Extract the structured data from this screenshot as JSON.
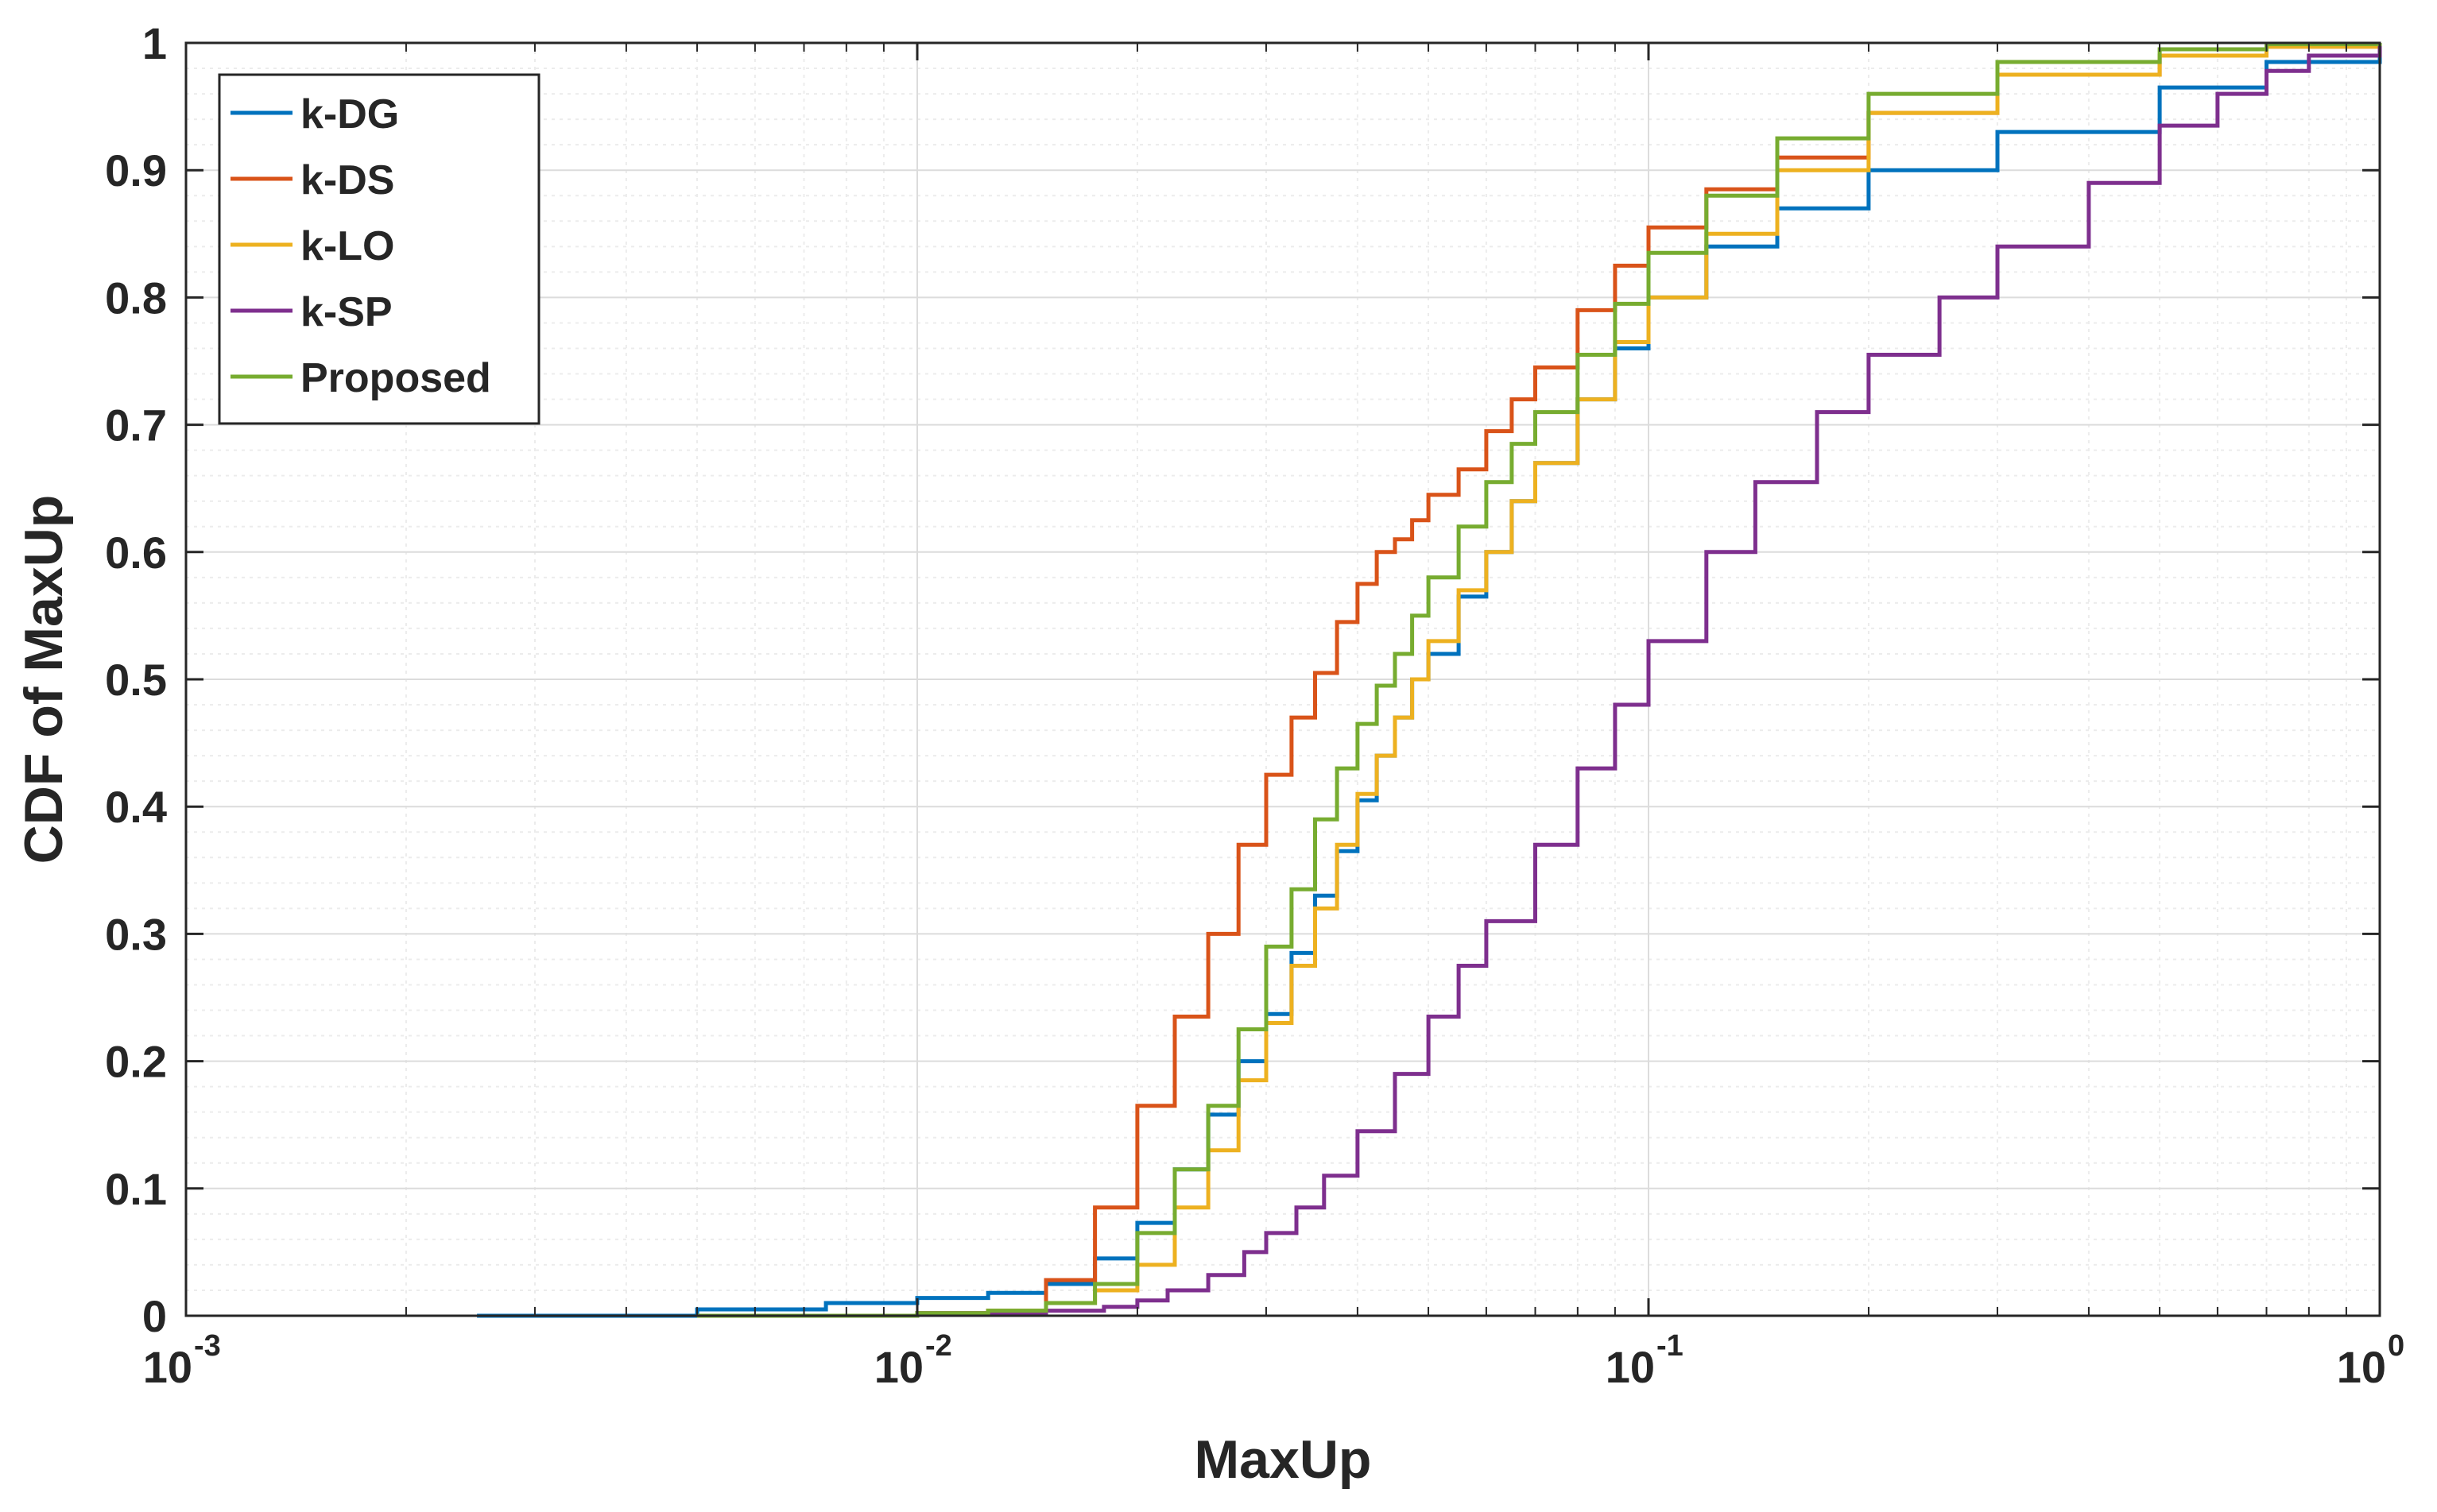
{
  "chart_data": {
    "type": "line",
    "title": "",
    "xlabel": "MaxUp",
    "ylabel": "CDF of MaxUp",
    "xscale": "log",
    "xlim": [
      0.001,
      1
    ],
    "ylim": [
      0,
      1
    ],
    "grid": true,
    "minor_grid": true,
    "legend_position": "top-left",
    "x_ticks": [
      {
        "base": "10",
        "exp": "-3",
        "value": 0.001
      },
      {
        "base": "10",
        "exp": "-2",
        "value": 0.01
      },
      {
        "base": "10",
        "exp": "-1",
        "value": 0.1
      },
      {
        "base": "10",
        "exp": "0",
        "value": 1
      }
    ],
    "y_ticks": [
      "0",
      "0.1",
      "0.2",
      "0.3",
      "0.4",
      "0.5",
      "0.6",
      "0.7",
      "0.8",
      "0.9",
      "1"
    ],
    "series": [
      {
        "name": "k-DG",
        "color": "#0072BD",
        "x": [
          0.0025,
          0.005,
          0.0075,
          0.01,
          0.0125,
          0.015,
          0.0175,
          0.02,
          0.0225,
          0.025,
          0.0275,
          0.03,
          0.0325,
          0.035,
          0.0375,
          0.04,
          0.0425,
          0.045,
          0.0475,
          0.05,
          0.055,
          0.06,
          0.065,
          0.07,
          0.08,
          0.09,
          0.1,
          0.12,
          0.15,
          0.2,
          0.3,
          0.5,
          0.7,
          1.0
        ],
        "y": [
          0.0,
          0.005,
          0.01,
          0.014,
          0.018,
          0.025,
          0.045,
          0.073,
          0.115,
          0.158,
          0.2,
          0.237,
          0.285,
          0.33,
          0.365,
          0.405,
          0.44,
          0.47,
          0.5,
          0.52,
          0.565,
          0.6,
          0.64,
          0.67,
          0.72,
          0.76,
          0.8,
          0.84,
          0.87,
          0.9,
          0.93,
          0.965,
          0.985,
          1.0
        ]
      },
      {
        "name": "k-DS",
        "color": "#D95319",
        "x": [
          0.005,
          0.01,
          0.0125,
          0.015,
          0.0175,
          0.02,
          0.0225,
          0.025,
          0.0275,
          0.03,
          0.0325,
          0.035,
          0.0375,
          0.04,
          0.0425,
          0.045,
          0.0475,
          0.05,
          0.055,
          0.06,
          0.065,
          0.07,
          0.08,
          0.09,
          0.1,
          0.12,
          0.15,
          0.2,
          0.3,
          0.5,
          0.7,
          1.0
        ],
        "y": [
          0.0,
          0.002,
          0.004,
          0.028,
          0.085,
          0.165,
          0.235,
          0.3,
          0.37,
          0.425,
          0.47,
          0.505,
          0.545,
          0.575,
          0.6,
          0.61,
          0.625,
          0.645,
          0.665,
          0.695,
          0.72,
          0.745,
          0.79,
          0.825,
          0.855,
          0.885,
          0.91,
          0.945,
          0.975,
          0.99,
          0.997,
          1.0
        ]
      },
      {
        "name": "k-LO",
        "color": "#EDB120",
        "x": [
          0.005,
          0.01,
          0.0125,
          0.015,
          0.0175,
          0.02,
          0.0225,
          0.025,
          0.0275,
          0.03,
          0.0325,
          0.035,
          0.0375,
          0.04,
          0.0425,
          0.045,
          0.0475,
          0.05,
          0.055,
          0.06,
          0.065,
          0.07,
          0.08,
          0.09,
          0.1,
          0.12,
          0.15,
          0.2,
          0.3,
          0.5,
          0.7,
          1.0
        ],
        "y": [
          0.0,
          0.002,
          0.004,
          0.01,
          0.02,
          0.04,
          0.085,
          0.13,
          0.185,
          0.23,
          0.275,
          0.32,
          0.37,
          0.41,
          0.44,
          0.47,
          0.5,
          0.53,
          0.57,
          0.6,
          0.64,
          0.67,
          0.72,
          0.765,
          0.8,
          0.85,
          0.9,
          0.945,
          0.975,
          0.99,
          0.997,
          1.0
        ]
      },
      {
        "name": "k-SP",
        "color": "#7E2F8E",
        "x": [
          0.005,
          0.01,
          0.015,
          0.018,
          0.02,
          0.022,
          0.025,
          0.028,
          0.03,
          0.033,
          0.036,
          0.04,
          0.045,
          0.05,
          0.055,
          0.06,
          0.07,
          0.08,
          0.09,
          0.1,
          0.12,
          0.14,
          0.17,
          0.2,
          0.25,
          0.3,
          0.4,
          0.5,
          0.6,
          0.7,
          0.8,
          1.0
        ],
        "y": [
          0.0,
          0.002,
          0.004,
          0.007,
          0.012,
          0.02,
          0.032,
          0.05,
          0.065,
          0.085,
          0.11,
          0.145,
          0.19,
          0.235,
          0.275,
          0.31,
          0.37,
          0.43,
          0.48,
          0.53,
          0.6,
          0.655,
          0.71,
          0.755,
          0.8,
          0.84,
          0.89,
          0.935,
          0.96,
          0.978,
          0.99,
          1.0
        ]
      },
      {
        "name": "Proposed",
        "color": "#77AC30",
        "x": [
          0.005,
          0.01,
          0.0125,
          0.015,
          0.0175,
          0.02,
          0.0225,
          0.025,
          0.0275,
          0.03,
          0.0325,
          0.035,
          0.0375,
          0.04,
          0.0425,
          0.045,
          0.0475,
          0.05,
          0.055,
          0.06,
          0.065,
          0.07,
          0.08,
          0.09,
          0.1,
          0.12,
          0.15,
          0.2,
          0.3,
          0.5,
          0.7,
          1.0
        ],
        "y": [
          0.0,
          0.002,
          0.004,
          0.01,
          0.025,
          0.065,
          0.115,
          0.165,
          0.225,
          0.29,
          0.335,
          0.39,
          0.43,
          0.465,
          0.495,
          0.52,
          0.55,
          0.58,
          0.62,
          0.655,
          0.685,
          0.71,
          0.755,
          0.795,
          0.835,
          0.88,
          0.925,
          0.96,
          0.985,
          0.995,
          0.999,
          1.0
        ]
      }
    ]
  }
}
